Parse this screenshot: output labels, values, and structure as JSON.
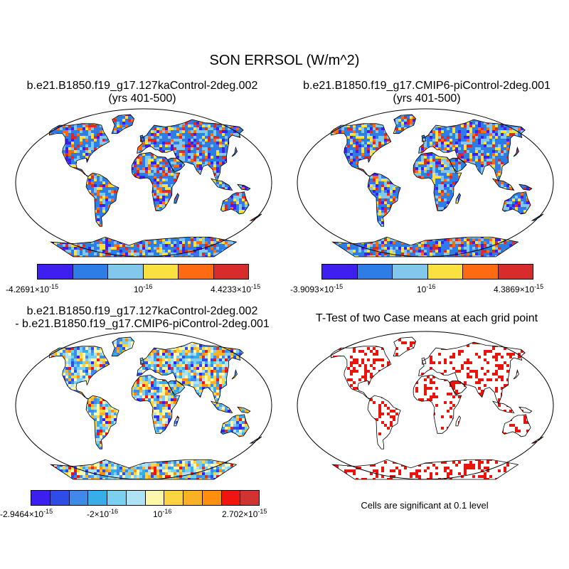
{
  "figure": {
    "title": "SON ERRSOL (W/m^2)"
  },
  "panels": [
    {
      "title_line1": "b.e21.B1850.f19_g17.127kaControl-2deg.002",
      "title_line2": "(yrs 401-500)",
      "colorbar": {
        "colors": [
          "#3f1ff0",
          "#2e7de6",
          "#82c8ec",
          "#fbe042",
          "#fc6a14",
          "#d62d2c"
        ],
        "label_min": "-4.2691×10",
        "label_min_exp": "-15",
        "label_mid": "10",
        "label_mid_exp": "-16",
        "label_max": "4.4233×10",
        "label_max_exp": "-15"
      }
    },
    {
      "title_line1": "b.e21.B1850.f19_g17.CMIP6-piControl-2deg.001",
      "title_line2": "(yrs 401-500)",
      "colorbar": {
        "colors": [
          "#3f1ff0",
          "#2e7de6",
          "#82c8ec",
          "#fbe042",
          "#fc6a14",
          "#d62d2c"
        ],
        "label_min": "-3.9093×10",
        "label_min_exp": "-15",
        "label_mid": "10",
        "label_mid_exp": "-16",
        "label_max": "4.3869×10",
        "label_max_exp": "-15"
      }
    },
    {
      "title_line1": "b.e21.B1850.f19_g17.127kaControl-2deg.002",
      "title_line2": "- b.e21.B1850.f19_g17.CMIP6-piControl-2deg.001",
      "colorbar": {
        "colors": [
          "#3c1ef0",
          "#2f4ce6",
          "#3f8ae8",
          "#38aee9",
          "#7bd0f2",
          "#aee2f4",
          "#fdf7ab",
          "#fcd441",
          "#fbb125",
          "#fd8e0e",
          "#f2140e",
          "#cf3431"
        ],
        "label_min": "-2.9464×10",
        "label_min_exp": "-15",
        "label_mid_neg": "-2×10",
        "label_mid_neg_exp": "-16",
        "label_mid": "10",
        "label_mid_exp": "-16",
        "label_max": "2.702×10",
        "label_max_exp": "-15"
      }
    },
    {
      "title_line1": "T-Test of two Case means at each grid point",
      "significance_color": "#e8140e",
      "note": "Cells are significant at 0.1 level"
    }
  ]
}
